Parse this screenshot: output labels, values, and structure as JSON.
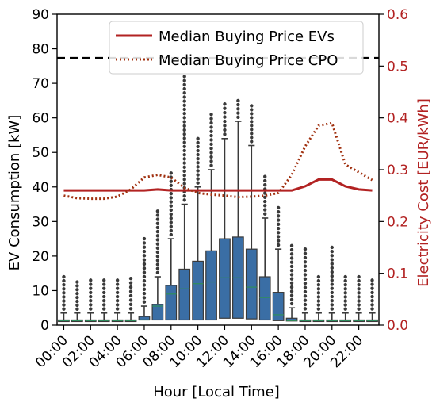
{
  "chart_data": {
    "type": "box",
    "x_label": "Hour [Local Time]",
    "y_label_left": "EV Consumption [kW]",
    "y_label_right": "Electricity Cost [EUR/kWh]",
    "left_ylim": [
      0,
      90
    ],
    "right_ylim": [
      0,
      0.6
    ],
    "left_ticks": [
      "0",
      "10",
      "20",
      "30",
      "40",
      "50",
      "60",
      "70",
      "80",
      "90"
    ],
    "right_ticks": [
      "0.0",
      "0.1",
      "0.2",
      "0.3",
      "0.4",
      "0.5",
      "0.6"
    ],
    "x_tick_labels": [
      "00:00",
      "02:00",
      "04:00",
      "06:00",
      "08:00",
      "10:00",
      "12:00",
      "14:00",
      "16:00",
      "18:00",
      "20:00",
      "22:00"
    ],
    "hours": [
      0,
      1,
      2,
      3,
      4,
      5,
      6,
      7,
      8,
      9,
      10,
      11,
      12,
      13,
      14,
      15,
      16,
      17,
      18,
      19,
      20,
      21,
      22,
      23
    ],
    "boxplot": {
      "q1": [
        1.2,
        1.2,
        1.2,
        1.2,
        1.2,
        1.2,
        1.5,
        1.5,
        1.5,
        1.5,
        1.5,
        1.5,
        2,
        2,
        1.8,
        1.5,
        1.3,
        1.2,
        1.2,
        1.2,
        1.2,
        1.2,
        1.2,
        1.2
      ],
      "median": [
        1.3,
        1.3,
        1.3,
        1.3,
        1.3,
        1.3,
        1.5,
        5.5,
        9,
        10.5,
        12,
        12.5,
        13.7,
        13.7,
        11,
        8,
        3,
        1.3,
        1.3,
        1.3,
        1.3,
        1.3,
        1.3,
        1.3
      ],
      "q3": [
        1.5,
        1.5,
        1.5,
        1.5,
        1.5,
        1.5,
        2.5,
        6,
        11.5,
        16.2,
        18.5,
        21.5,
        25,
        25.5,
        22,
        14,
        9.5,
        2,
        1.5,
        1.5,
        1.5,
        1.5,
        1.5,
        1.5
      ],
      "whisker_high": [
        3.5,
        3.5,
        3.5,
        3.5,
        3.5,
        3.5,
        5.5,
        14,
        25,
        35,
        40,
        45,
        54,
        59,
        52,
        31,
        22,
        5,
        3.5,
        3.5,
        3.5,
        3.5,
        3.5,
        3.5
      ],
      "outlier_max": [
        14,
        12.5,
        13,
        13,
        13,
        13.5,
        25,
        33,
        44,
        72,
        54,
        61,
        64,
        65,
        63.5,
        43,
        34,
        23,
        22,
        14,
        22.5,
        14,
        14,
        13
      ]
    },
    "series": [
      {
        "name": "Median Buying Price EVs",
        "axis": "right",
        "color": "#b22222",
        "style": "solid",
        "values": [
          0.26,
          0.26,
          0.26,
          0.26,
          0.26,
          0.26,
          0.26,
          0.262,
          0.26,
          0.26,
          0.26,
          0.26,
          0.26,
          0.26,
          0.26,
          0.26,
          0.26,
          0.26,
          0.268,
          0.281,
          0.281,
          0.268,
          0.262,
          0.26
        ]
      },
      {
        "name": "Median Buying Price CPO",
        "axis": "right",
        "color": "#a0300f",
        "style": "dotted",
        "values": [
          0.25,
          0.245,
          0.244,
          0.244,
          0.248,
          0.262,
          0.285,
          0.29,
          0.285,
          0.265,
          0.255,
          0.252,
          0.25,
          0.247,
          0.248,
          0.25,
          0.255,
          0.29,
          0.345,
          0.385,
          0.39,
          0.31,
          0.295,
          0.28
        ]
      }
    ],
    "hline": {
      "value_left": 77.3,
      "color": "#000000",
      "style": "dashed"
    },
    "legend_position": "top-right",
    "colors": {
      "box": "#3a6ea5",
      "median_line": "#2f8f5b",
      "axis_right": "#b22222"
    }
  }
}
